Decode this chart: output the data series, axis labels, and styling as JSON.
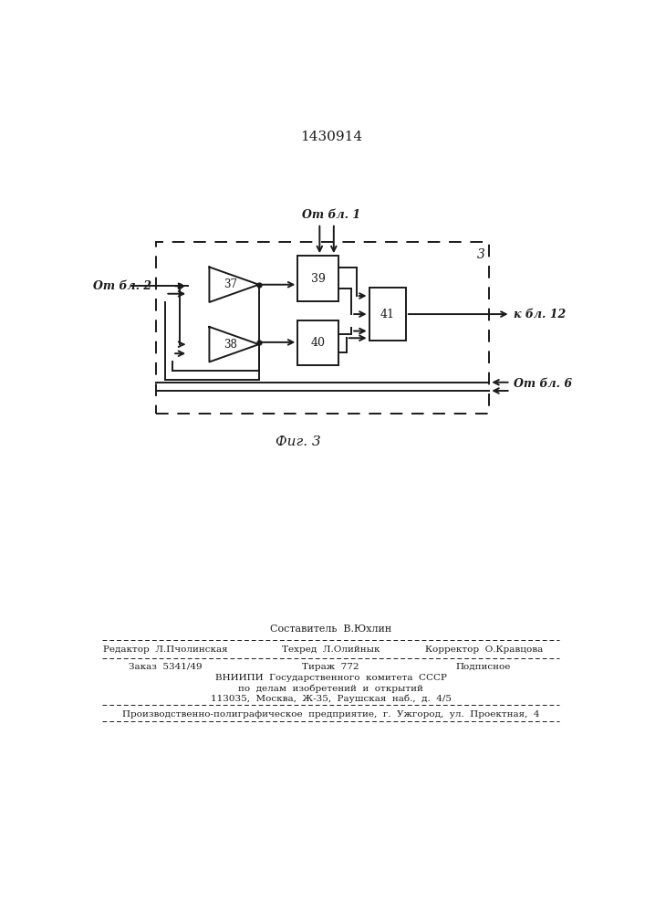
{
  "title": "1430914",
  "fig_label": "Фиг. 3",
  "block3_label": "3",
  "from_bl1": "От бл. 1",
  "from_bl2": "От бл. 2",
  "from_bl6": "От бл. 6",
  "to_bl12": "к бл. 12",
  "elem37": "37",
  "elem38": "38",
  "elem39": "39",
  "elem40": "40",
  "elem41": "41",
  "bg_color": "#ffffff",
  "line_color": "#1a1a1a",
  "text_color": "#1a1a1a",
  "footer_sestavitel": "Составитель  В.Юхлин",
  "footer_redaktor": "Редактор  Л.Пчолинская",
  "footer_tehred": "Техред  Л.Олийнык",
  "footer_korrektor": "Корректор  О.Кравцова",
  "footer_zakaz": "Заказ  5341/49",
  "footer_tirazh": "Тираж  772",
  "footer_podpisnoe": "Подписное",
  "footer_vniip1": "ВНИИПИ  Государственного  комитета  СССР",
  "footer_vniip2": "по  делам  изобретений  и  открытий",
  "footer_vniip3": "113035,  Москва,  Ж-35,  Раушская  наб.,  д.  4/5",
  "footer_factory": "Производственно-полиграфическое  предприятие,  г.  Ужгород,  ул.  Проектная,  4"
}
